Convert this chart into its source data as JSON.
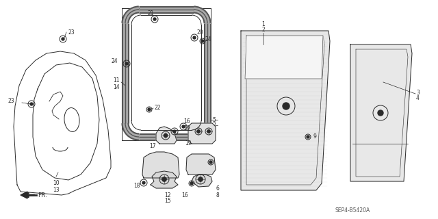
{
  "bg_color": "#ffffff",
  "line_color": "#2a2a2a",
  "gray": "#888888",
  "light_gray": "#cccccc",
  "diagram_code": "SEP4-B5420A",
  "fig_w": 6.4,
  "fig_h": 3.2,
  "dpi": 100
}
